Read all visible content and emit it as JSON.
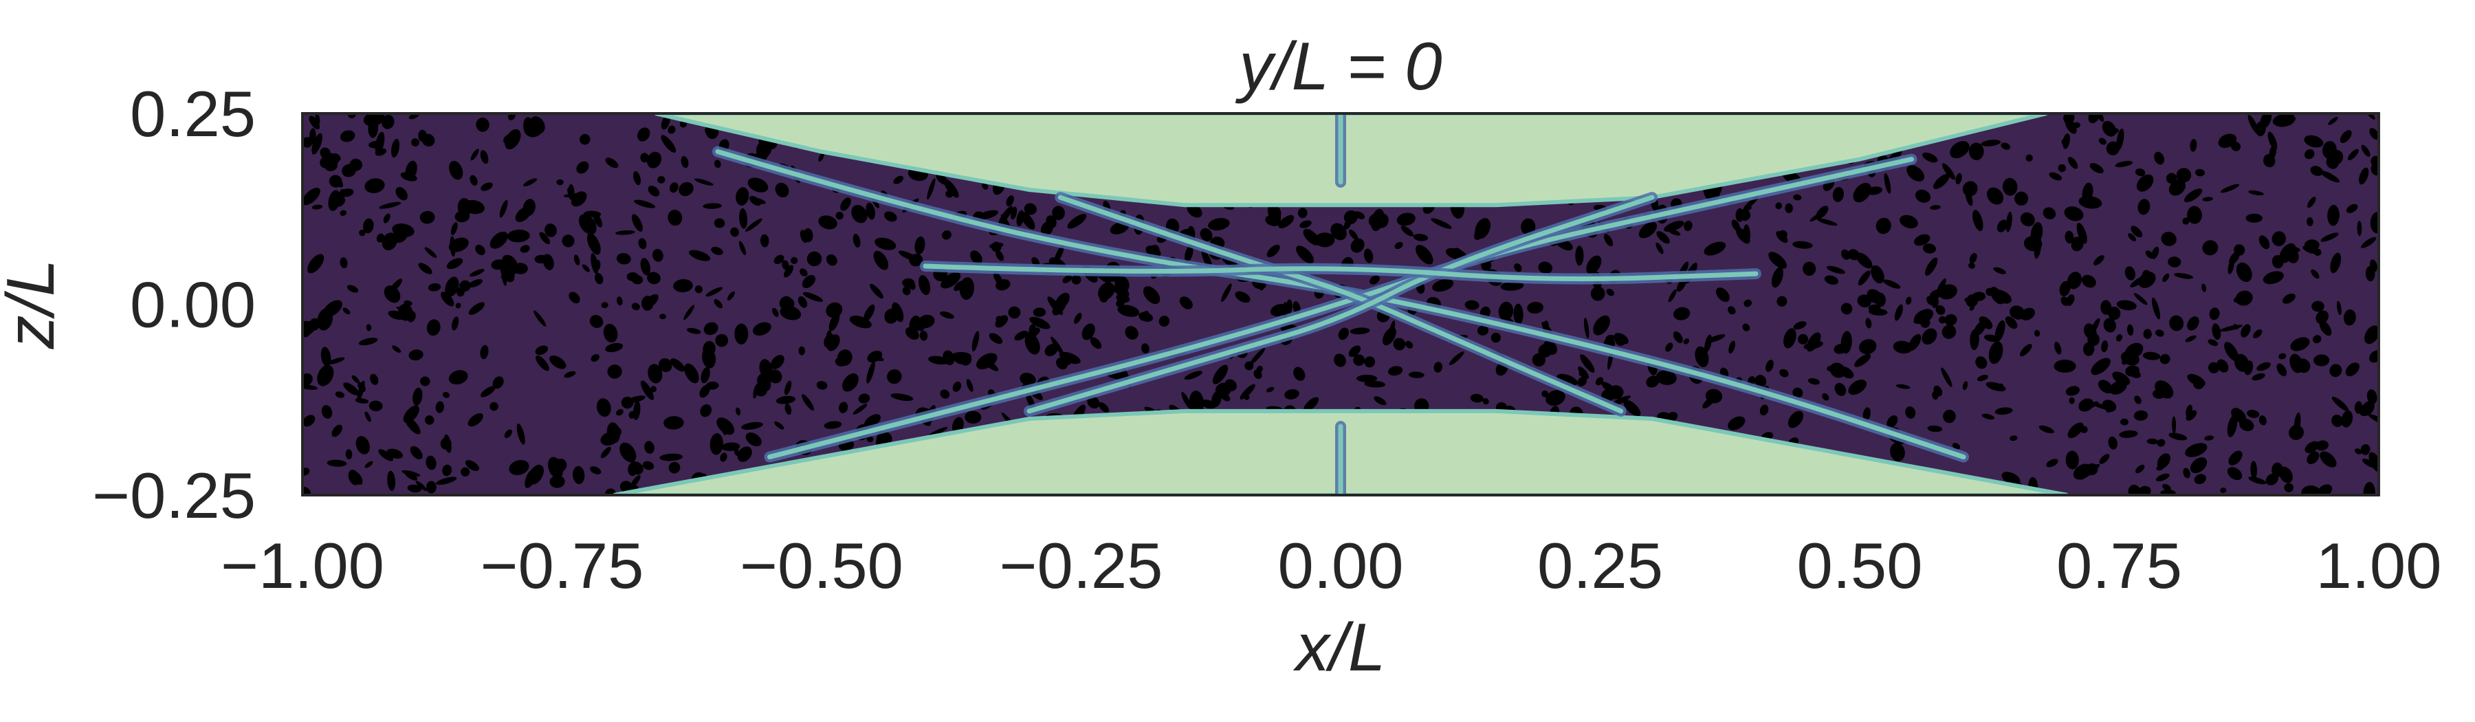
{
  "chart_data": {
    "type": "heatmap",
    "title": "y/L = 0",
    "xlabel": "x/L",
    "ylabel": "z/L",
    "xlim": [
      -1.0,
      1.0
    ],
    "ylim": [
      -0.25,
      0.25
    ],
    "xticks": [
      -1.0,
      -0.75,
      -0.5,
      -0.25,
      0.0,
      0.25,
      0.5,
      0.75,
      1.0
    ],
    "xtick_labels": [
      "−1.00",
      "−0.75",
      "−0.50",
      "−0.25",
      "0.00",
      "0.25",
      "0.50",
      "0.75",
      "1.00"
    ],
    "yticks": [
      0.25,
      0.0,
      -0.25
    ],
    "ytick_labels": [
      "0.25",
      "0.00",
      "−0.25"
    ],
    "grid": false,
    "colors": {
      "background_region": "#bfdeb7",
      "interior": "#3e2451",
      "speckle": "#000000",
      "streak_cyan": "#7cc8b8",
      "streak_blue": "#4e6ea8"
    },
    "regions": {
      "upper_boundary": [
        [
          -0.66,
          0.25
        ],
        [
          -0.5,
          0.2
        ],
        [
          -0.3,
          0.15
        ],
        [
          -0.15,
          0.13
        ],
        [
          0.0,
          0.13
        ],
        [
          0.15,
          0.13
        ],
        [
          0.3,
          0.14
        ],
        [
          0.5,
          0.19
        ],
        [
          0.68,
          0.25
        ]
      ],
      "lower_boundary": [
        [
          -0.7,
          -0.25
        ],
        [
          -0.5,
          -0.2
        ],
        [
          -0.3,
          -0.15
        ],
        [
          -0.15,
          -0.14
        ],
        [
          0.0,
          -0.14
        ],
        [
          0.15,
          -0.14
        ],
        [
          0.3,
          -0.15
        ],
        [
          0.5,
          -0.2
        ],
        [
          0.7,
          -0.25
        ]
      ]
    },
    "streaks": [
      [
        [
          -0.6,
          0.2
        ],
        [
          -0.4,
          0.12
        ],
        [
          -0.2,
          0.06
        ],
        [
          0.0,
          0.02
        ],
        [
          0.2,
          -0.04
        ],
        [
          0.4,
          -0.11
        ],
        [
          0.6,
          -0.2
        ]
      ],
      [
        [
          -0.55,
          -0.2
        ],
        [
          -0.35,
          -0.13
        ],
        [
          -0.15,
          -0.06
        ],
        [
          0.0,
          0.0
        ],
        [
          0.15,
          0.07
        ],
        [
          0.35,
          0.13
        ],
        [
          0.55,
          0.19
        ]
      ],
      [
        [
          -0.27,
          0.14
        ],
        [
          -0.1,
          0.06
        ],
        [
          0.0,
          0.02
        ],
        [
          0.1,
          -0.04
        ],
        [
          0.27,
          -0.14
        ]
      ],
      [
        [
          -0.3,
          -0.14
        ],
        [
          -0.1,
          -0.06
        ],
        [
          0.0,
          -0.02
        ],
        [
          0.1,
          0.05
        ],
        [
          0.3,
          0.14
        ]
      ],
      [
        [
          -0.4,
          0.05
        ],
        [
          -0.2,
          0.04
        ],
        [
          0.0,
          0.05
        ],
        [
          0.2,
          0.03
        ],
        [
          0.4,
          0.04
        ]
      ],
      [
        [
          0.0,
          0.25
        ],
        [
          0.0,
          0.16
        ]
      ],
      [
        [
          0.0,
          -0.25
        ],
        [
          0.0,
          -0.16
        ]
      ]
    ]
  }
}
